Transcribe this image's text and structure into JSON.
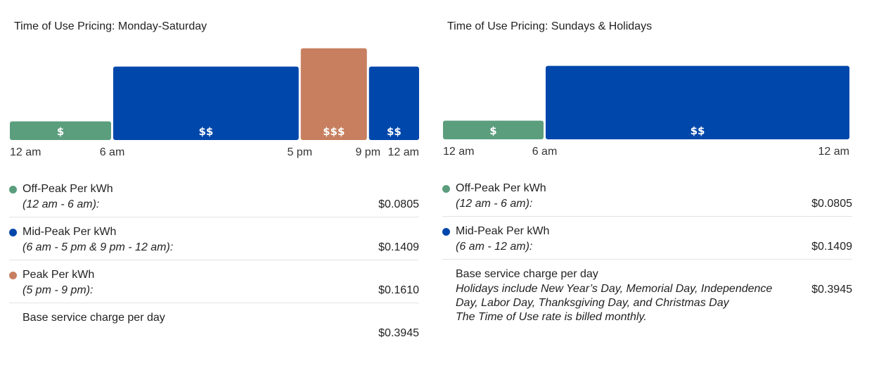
{
  "chart_data": [
    {
      "type": "bar",
      "title": "Time of Use Pricing: Monday-Saturday",
      "xlabel": "",
      "ylabel": "",
      "tick_labels": [
        "12 am",
        "6 am",
        "5 pm",
        "9 pm",
        "12 am"
      ],
      "segments": [
        {
          "start_hour": 0,
          "end_hour": 6,
          "label": "$",
          "tier": "Off-Peak",
          "value": 0.0805,
          "color": "#5b9e7d"
        },
        {
          "start_hour": 6,
          "end_hour": 17,
          "label": "$$",
          "tier": "Mid-Peak",
          "value": 0.1409,
          "color": "#0047ab"
        },
        {
          "start_hour": 17,
          "end_hour": 21,
          "label": "$$$",
          "tier": "Peak",
          "value": 0.161,
          "color": "#c77f5f"
        },
        {
          "start_hour": 21,
          "end_hour": 24,
          "label": "$$",
          "tier": "Mid-Peak",
          "value": 0.1409,
          "color": "#0047ab"
        }
      ],
      "rates": [
        {
          "name": "Off-Peak Per kWh",
          "hours": "(12 am - 6 am):",
          "price": "$0.0805",
          "color": "#5b9e7d"
        },
        {
          "name": "Mid-Peak Per kWh",
          "hours": "(6 am - 5 pm & 9 pm - 12 am):",
          "price": "$0.1409",
          "color": "#0047ab"
        },
        {
          "name": "Peak Per kWh",
          "hours": "(5 pm - 9 pm):",
          "price": "$0.1610",
          "color": "#c77f5f"
        }
      ],
      "base": {
        "name": "Base service charge per day",
        "price": "$0.3945"
      }
    },
    {
      "type": "bar",
      "title": "Time of Use Pricing: Sundays & Holidays",
      "xlabel": "",
      "ylabel": "",
      "tick_labels": [
        "12 am",
        "6 am",
        "12 am"
      ],
      "segments": [
        {
          "start_hour": 0,
          "end_hour": 6,
          "label": "$",
          "tier": "Off-Peak",
          "value": 0.0805,
          "color": "#5b9e7d"
        },
        {
          "start_hour": 6,
          "end_hour": 24,
          "label": "$$",
          "tier": "Mid-Peak",
          "value": 0.1409,
          "color": "#0047ab"
        }
      ],
      "rates": [
        {
          "name": "Off-Peak Per kWh",
          "hours": "(12 am - 6 am):",
          "price": "$0.0805",
          "color": "#5b9e7d"
        },
        {
          "name": "Mid-Peak Per kWh",
          "hours": "(6 am - 12 am):",
          "price": "$0.1409",
          "color": "#0047ab"
        }
      ],
      "base": {
        "name": "Base service charge per day",
        "price": "$0.3945",
        "notes": [
          "Holidays include New Year’s Day, Memorial Day, Independence Day, Labor Day, Thanksgiving Day, and Christmas Day",
          "The Time of Use rate is billed monthly."
        ]
      }
    }
  ]
}
